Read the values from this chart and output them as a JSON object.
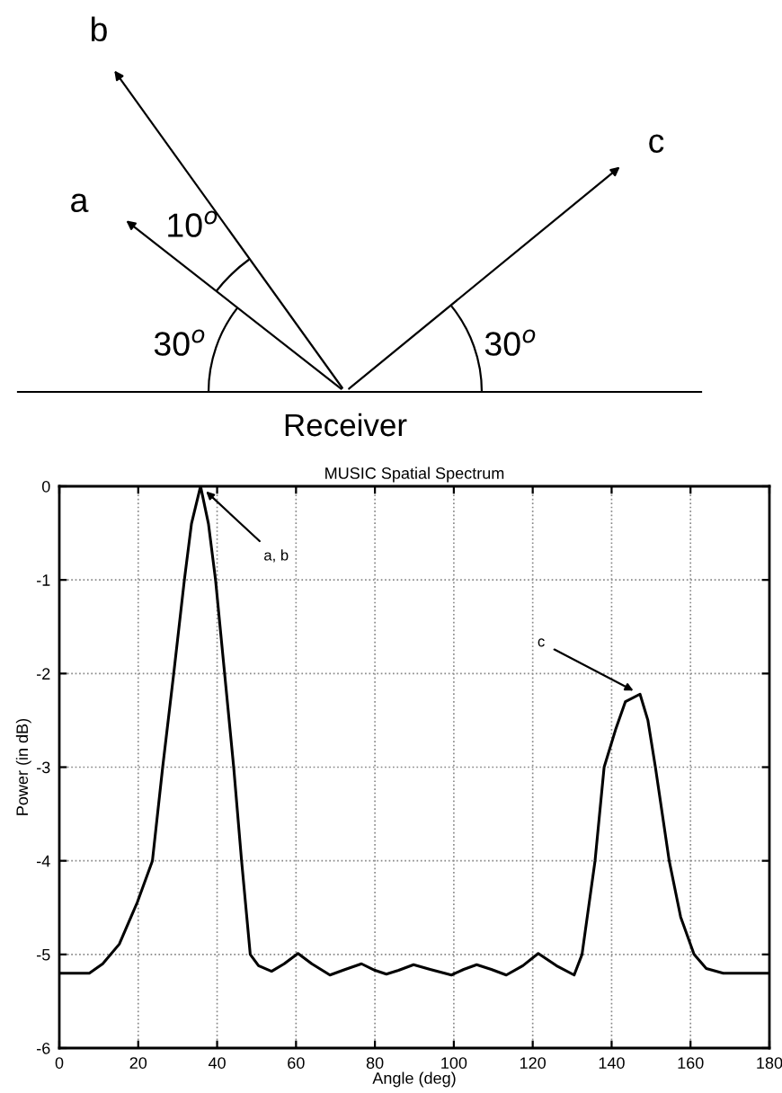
{
  "chart_data": {
    "type": "line",
    "title": "MUSIC Spatial Spectrum",
    "xlabel": "Angle (deg)",
    "ylabel": "Power (in dB)",
    "x": [
      0,
      4,
      7.6,
      11,
      15.2,
      19.8,
      23.6,
      26.2,
      29,
      31.7,
      33.5,
      35.8,
      37.8,
      39.6,
      41.9,
      44.2,
      46.2,
      48.4,
      50.5,
      53.8,
      57,
      60.5,
      64,
      68.6,
      72.5,
      76.6,
      80,
      82.9,
      86,
      89.8,
      94,
      99.4,
      102.5,
      105.8,
      109.5,
      113.3,
      117.5,
      121.4,
      126,
      130.5,
      132.5,
      135.8,
      138.1,
      141,
      143.5,
      147.2,
      149.2,
      151.1,
      154.6,
      157.5,
      160.9,
      164,
      168.3,
      174,
      180
    ],
    "series": [
      {
        "color": "#000000",
        "values": [
          -5.2,
          -5.2,
          -5.2,
          -5.1,
          -4.89,
          -4.44,
          -4,
          -3,
          -2,
          -1,
          -0.4,
          0,
          -0.4,
          -1,
          -2,
          -3,
          -4,
          -5,
          -5.12,
          -5.18,
          -5.1,
          -4.99,
          -5.1,
          -5.22,
          -5.16,
          -5.1,
          -5.17,
          -5.21,
          -5.17,
          -5.11,
          -5.16,
          -5.22,
          -5.16,
          -5.11,
          -5.16,
          -5.22,
          -5.12,
          -4.99,
          -5.12,
          -5.22,
          -5,
          -4,
          -3,
          -2.6,
          -2.3,
          -2.22,
          -2.5,
          -3,
          -4,
          -4.6,
          -5,
          -5.15,
          -5.2,
          -5.2,
          -5.2
        ]
      }
    ],
    "xlim": [
      0,
      180
    ],
    "xticks": [
      0,
      20,
      40,
      60,
      80,
      100,
      120,
      140,
      160,
      180
    ],
    "ylim": [
      -6,
      0
    ],
    "yticks": [
      -6,
      -5,
      -4,
      -3,
      -2,
      -1,
      0
    ],
    "grid": true,
    "line_style": "solid",
    "marker": "none",
    "annotations": [
      {
        "text": "a, b",
        "x": 35.8,
        "y": 0
      },
      {
        "text": "c",
        "x": 147.2,
        "y": -2.22
      },
      "a",
      "b",
      "c",
      "10$^{o}$",
      "30$^{o}$",
      "30$^{o}$",
      "Receiver"
    ]
  }
}
